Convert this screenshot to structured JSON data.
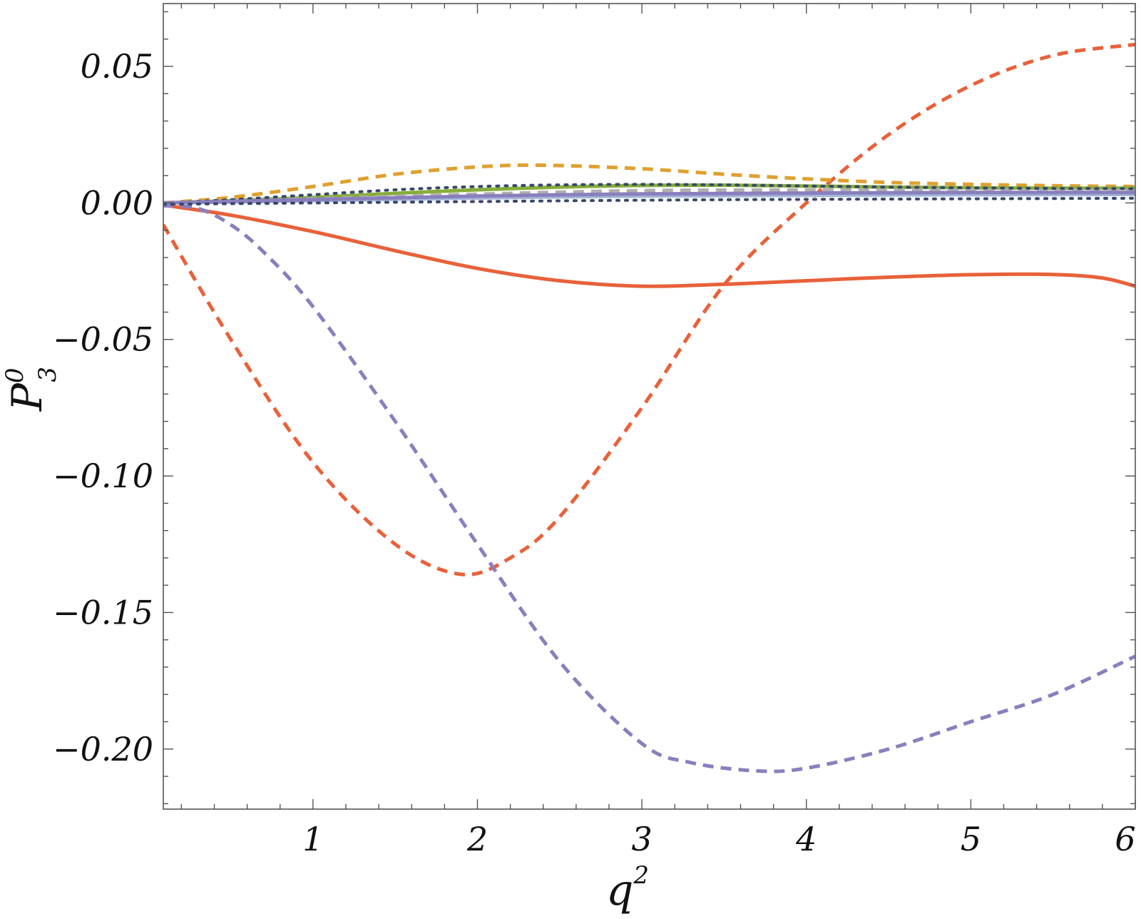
{
  "chart_data": {
    "type": "line",
    "xlabel": {
      "base": "q",
      "sup": "2"
    },
    "ylabel": {
      "base": "P",
      "sup": "0",
      "sub": "3"
    },
    "xlim": [
      0.09,
      6.0
    ],
    "ylim": [
      -0.222,
      0.073
    ],
    "x_ticks": [
      {
        "value": 1,
        "label": "1"
      },
      {
        "value": 2,
        "label": "2"
      },
      {
        "value": 3,
        "label": "3"
      },
      {
        "value": 4,
        "label": "4"
      },
      {
        "value": 5,
        "label": "5"
      },
      {
        "value": 6,
        "label": "6"
      }
    ],
    "y_ticks": [
      {
        "value": 0.05,
        "label": "0.05"
      },
      {
        "value": 0.0,
        "label": "0.00"
      },
      {
        "value": -0.05,
        "label": "−0.05"
      },
      {
        "value": -0.1,
        "label": "−0.10"
      },
      {
        "value": -0.15,
        "label": "−0.15"
      },
      {
        "value": -0.2,
        "label": "−0.20"
      }
    ],
    "grid": false,
    "legend": "none",
    "series": [
      {
        "color": "#e8613a",
        "style": "solid",
        "x": [
          0.09,
          0.5,
          1.0,
          1.5,
          2.0,
          2.5,
          3.0,
          3.5,
          4.0,
          4.5,
          5.0,
          5.5,
          5.8,
          6.0
        ],
        "y": [
          -0.0008,
          -0.0045,
          -0.0105,
          -0.0175,
          -0.024,
          -0.0285,
          -0.0305,
          -0.0298,
          -0.0285,
          -0.0272,
          -0.0263,
          -0.0262,
          -0.0275,
          -0.0305
        ]
      },
      {
        "color": "#e8613a",
        "style": "dashed",
        "x": [
          0.09,
          0.5,
          1.0,
          1.5,
          1.9,
          2.2,
          2.5,
          3.0,
          3.5,
          4.0,
          4.5,
          5.0,
          5.5,
          6.0
        ],
        "y": [
          -0.008,
          -0.05,
          -0.095,
          -0.125,
          -0.136,
          -0.13,
          -0.115,
          -0.075,
          -0.03,
          0.0,
          0.025,
          0.043,
          0.054,
          0.058
        ]
      },
      {
        "color": "#8a7fbd",
        "style": "dashed",
        "x": [
          0.09,
          0.3,
          0.5,
          0.7,
          1.0,
          1.5,
          2.0,
          2.5,
          3.0,
          3.3,
          3.7,
          4.0,
          4.5,
          5.0,
          5.5,
          6.0
        ],
        "y": [
          -0.001,
          -0.002,
          -0.008,
          -0.018,
          -0.038,
          -0.08,
          -0.125,
          -0.168,
          -0.198,
          -0.205,
          -0.208,
          -0.207,
          -0.2,
          -0.19,
          -0.18,
          -0.166
        ]
      },
      {
        "color": "#e0a030",
        "style": "dashed",
        "x": [
          0.09,
          0.5,
          1.0,
          1.5,
          2.0,
          2.4,
          3.0,
          3.5,
          4.0,
          4.5,
          5.0,
          5.5,
          6.0
        ],
        "y": [
          0.0,
          0.002,
          0.006,
          0.0105,
          0.0132,
          0.0138,
          0.0125,
          0.0105,
          0.0088,
          0.0075,
          0.0068,
          0.0063,
          0.006
        ]
      },
      {
        "color": "#86ad3a",
        "style": "solid",
        "x": [
          0.09,
          0.5,
          1.0,
          1.5,
          2.0,
          2.5,
          3.0,
          3.5,
          4.0,
          4.5,
          5.0,
          5.5,
          6.0
        ],
        "y": [
          0.0,
          0.0008,
          0.002,
          0.0035,
          0.0048,
          0.0058,
          0.0064,
          0.0065,
          0.0062,
          0.0058,
          0.0055,
          0.0054,
          0.0054
        ]
      },
      {
        "color": "#b0b0b0",
        "style": "dashed",
        "x": [
          0.09,
          1.0,
          2.0,
          3.0,
          4.0,
          5.0,
          6.0
        ],
        "y": [
          0.0,
          0.0015,
          0.0032,
          0.0045,
          0.0047,
          0.0046,
          0.0045
        ]
      },
      {
        "color": "#39476e",
        "style": "dotted",
        "x": [
          0.09,
          0.5,
          1.0,
          1.5,
          2.0,
          2.5,
          3.0,
          3.5,
          4.0,
          4.5,
          5.0,
          5.5,
          6.0
        ],
        "y": [
          0.0,
          0.0012,
          0.003,
          0.0048,
          0.006,
          0.0066,
          0.0068,
          0.0066,
          0.0062,
          0.0058,
          0.0055,
          0.0053,
          0.0052
        ]
      },
      {
        "color": "#a3b6d8",
        "style": "solid",
        "x": [
          0.09,
          1.0,
          2.0,
          3.0,
          4.0,
          5.0,
          6.0
        ],
        "y": [
          0.0,
          0.0008,
          0.0018,
          0.0025,
          0.0028,
          0.003,
          0.0031
        ]
      },
      {
        "color": "#8a7fbd",
        "style": "solid",
        "x": [
          0.09,
          1.0,
          2.0,
          3.0,
          4.0,
          5.0,
          6.0
        ],
        "y": [
          0.0,
          0.0012,
          0.0025,
          0.0033,
          0.0036,
          0.0038,
          0.0038
        ]
      },
      {
        "color": "#39476e",
        "style": "dotted",
        "x": [
          0.09,
          1.0,
          2.0,
          3.0,
          4.0,
          5.0,
          6.0
        ],
        "y": [
          -0.0005,
          0.0,
          0.0005,
          0.001,
          0.0013,
          0.0015,
          0.0017
        ]
      }
    ]
  }
}
